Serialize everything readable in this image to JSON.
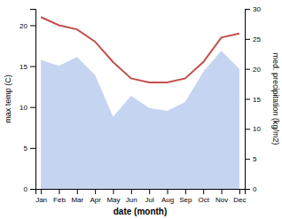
{
  "chart_data": {
    "type": "line",
    "categories": [
      "Jan",
      "Feb",
      "Mar",
      "Apr",
      "May",
      "Jun",
      "Jul",
      "Aug",
      "Sep",
      "Oct",
      "Nov",
      "Dec"
    ],
    "xlabel": "date (month)",
    "ylabel": "max temp (C)",
    "y2label": "med. precipitation (kg/m2)",
    "ylim": [
      0,
      22
    ],
    "yticks": [
      0,
      5,
      10,
      15,
      20
    ],
    "y2lim": [
      0,
      30
    ],
    "y2ticks": [
      0,
      5,
      10,
      15,
      20,
      25,
      30
    ],
    "series": [
      {
        "type": "area",
        "axis": "y2",
        "color": "#c5d4f0",
        "values": [
          21.5,
          20.5,
          22.0,
          19.0,
          12.0,
          15.5,
          13.5,
          13.0,
          14.5,
          19.5,
          23.0,
          20.0
        ]
      },
      {
        "type": "line",
        "color": "#c0504d",
        "values": [
          21.0,
          20.0,
          19.5,
          18.0,
          15.5,
          13.5,
          13.0,
          13.0,
          13.5,
          15.5,
          18.5,
          19.0
        ]
      }
    ]
  }
}
